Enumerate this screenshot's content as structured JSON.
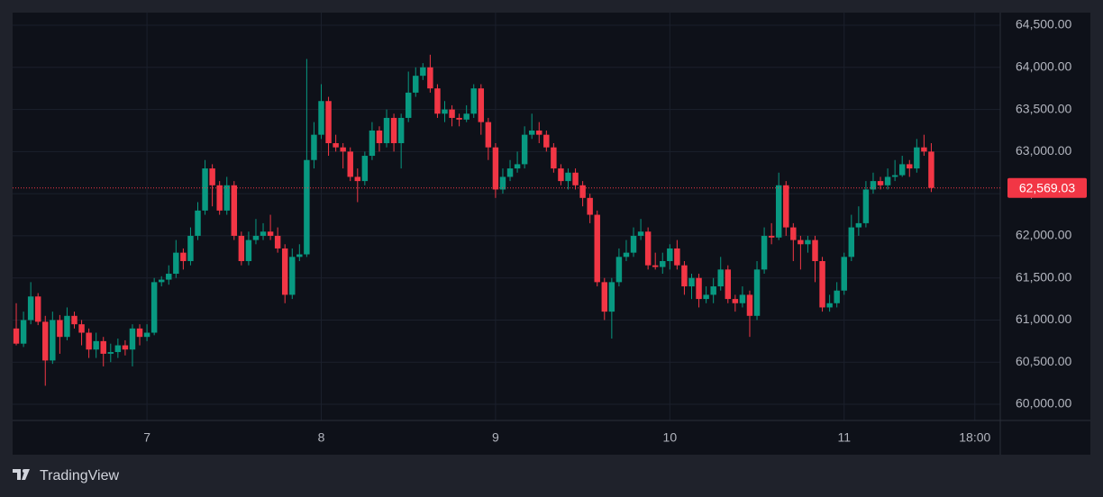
{
  "chart_data": {
    "type": "candlestick",
    "watermark": "TradingView",
    "up_color": "#089981",
    "down_color": "#f23645",
    "grid": true,
    "ylim": [
      59808,
      64650
    ],
    "yticks": [
      {
        "value": 60000,
        "label": "60,000.00"
      },
      {
        "value": 60500,
        "label": "60,500.00"
      },
      {
        "value": 61000,
        "label": "61,000.00"
      },
      {
        "value": 61500,
        "label": "61,500.00"
      },
      {
        "value": 62000,
        "label": "62,000.00"
      },
      {
        "value": 62500,
        "label": "62,500.00"
      },
      {
        "value": 63000,
        "label": "63,000.00"
      },
      {
        "value": 63500,
        "label": "63,500.00"
      },
      {
        "value": 64000,
        "label": "64,000.00"
      },
      {
        "value": 64500,
        "label": "64,500.00"
      }
    ],
    "last_price": {
      "value": 62569.03,
      "label": "62,569.03"
    },
    "categories": [
      null,
      null,
      null,
      null,
      null,
      null,
      null,
      null,
      null,
      null,
      null,
      null,
      null,
      null,
      null,
      null,
      null,
      null,
      "7",
      null,
      null,
      null,
      null,
      null,
      null,
      null,
      null,
      null,
      null,
      null,
      null,
      null,
      null,
      null,
      null,
      null,
      null,
      null,
      null,
      null,
      null,
      null,
      "8",
      null,
      null,
      null,
      null,
      null,
      null,
      null,
      null,
      null,
      null,
      null,
      null,
      null,
      null,
      null,
      null,
      null,
      null,
      null,
      null,
      null,
      null,
      null,
      "9",
      null,
      null,
      null,
      null,
      null,
      null,
      null,
      null,
      null,
      null,
      null,
      null,
      null,
      null,
      null,
      null,
      null,
      null,
      null,
      null,
      null,
      null,
      null,
      "10",
      null,
      null,
      null,
      null,
      null,
      null,
      null,
      null,
      null,
      null,
      null,
      null,
      null,
      null,
      null,
      null,
      null,
      null,
      null,
      null,
      null,
      null,
      null,
      "11",
      null,
      null,
      null,
      null,
      null,
      null,
      null,
      null,
      null,
      null,
      null,
      null,
      null,
      null,
      null,
      null,
      null,
      "18:00",
      null,
      null,
      null
    ],
    "open": [
      60900,
      60720,
      61000,
      61280,
      60980,
      60520,
      61000,
      60800,
      61050,
      60950,
      60850,
      60650,
      60750,
      60600,
      60620,
      60700,
      60650,
      60900,
      60800,
      60850,
      61450,
      61480,
      61550,
      61800,
      61700,
      62000,
      62300,
      62800,
      62600,
      62300,
      62600,
      62000,
      61700,
      61950,
      62000,
      62050,
      62000,
      61850,
      61300,
      61750,
      61780,
      62900,
      63200,
      63600,
      63100,
      63050,
      63000,
      62700,
      62650,
      62950,
      63250,
      63100,
      63400,
      63100,
      63400,
      63700,
      63900,
      64000,
      63750,
      63450,
      63500,
      63400,
      63380,
      63450,
      63750,
      63350,
      63050,
      62550,
      62700,
      62800,
      62850,
      63200,
      63250,
      63200,
      63050,
      62800,
      62650,
      62750,
      62600,
      62450,
      62250,
      61450,
      61100,
      61450,
      61750,
      61800,
      62000,
      62050,
      61650,
      61630,
      61700,
      61850,
      61650,
      61400,
      61500,
      61250,
      61300,
      61400,
      61600,
      61250,
      61200,
      61300,
      61050,
      61600,
      62000,
      61980,
      62600,
      62100,
      61950,
      61900,
      61950,
      61700,
      61150,
      61200,
      61350,
      61750,
      62100,
      62150,
      62550,
      62650,
      62600,
      62700,
      62720,
      62850,
      62800,
      63050,
      63000,
      null,
      null,
      null,
      null,
      null,
      null,
      null,
      null,
      null
    ],
    "high": [
      61200,
      61100,
      61450,
      61320,
      61050,
      61100,
      61060,
      61150,
      61100,
      61000,
      60900,
      60850,
      60800,
      60720,
      60780,
      60760,
      60950,
      60950,
      60950,
      61500,
      61520,
      61650,
      61950,
      61850,
      62100,
      62400,
      62900,
      62850,
      62650,
      62700,
      62650,
      62050,
      62050,
      62200,
      62150,
      62250,
      62100,
      61900,
      61850,
      61900,
      64100,
      63350,
      63800,
      63650,
      63200,
      63100,
      63050,
      62800,
      63000,
      63350,
      63300,
      63500,
      63450,
      63450,
      63950,
      64000,
      64050,
      64150,
      63800,
      63600,
      63550,
      63450,
      63550,
      63800,
      63800,
      63400,
      63100,
      62800,
      62900,
      63000,
      63300,
      63450,
      63350,
      63250,
      63100,
      62850,
      62800,
      62800,
      62650,
      62500,
      62300,
      61500,
      61500,
      61850,
      61950,
      62100,
      62200,
      62100,
      61800,
      61800,
      61900,
      61950,
      61700,
      61550,
      61550,
      61400,
      61500,
      61750,
      61650,
      61300,
      61400,
      61350,
      61700,
      62100,
      62150,
      62750,
      62650,
      62150,
      62000,
      62000,
      62000,
      61750,
      61300,
      61450,
      61800,
      62250,
      62350,
      62650,
      62750,
      62700,
      62800,
      62900,
      62950,
      62900,
      63150,
      63200,
      63100,
      null,
      null,
      null,
      null,
      null,
      null,
      null,
      null,
      null
    ],
    "low": [
      60700,
      60680,
      60950,
      60940,
      60220,
      60480,
      60600,
      60760,
      60900,
      60700,
      60550,
      60550,
      60450,
      60500,
      60550,
      60580,
      60450,
      60700,
      60750,
      60820,
      61400,
      61420,
      61500,
      61600,
      61650,
      61950,
      62250,
      62350,
      62250,
      62250,
      61950,
      61650,
      61650,
      61900,
      61950,
      61950,
      61800,
      61200,
      61250,
      61700,
      61750,
      62800,
      63150,
      62950,
      63000,
      62800,
      62650,
      62400,
      62600,
      62900,
      63000,
      63050,
      63000,
      62800,
      63350,
      63650,
      63850,
      63700,
      63400,
      63350,
      63300,
      63300,
      63350,
      63400,
      63200,
      62900,
      62450,
      62500,
      62650,
      62750,
      62800,
      63150,
      63100,
      63000,
      62750,
      62600,
      62550,
      62550,
      62350,
      62150,
      61400,
      61000,
      60780,
      61400,
      61700,
      61750,
      61950,
      61600,
      61600,
      61550,
      61600,
      61600,
      61300,
      61250,
      61150,
      61200,
      61200,
      61350,
      61200,
      61100,
      61150,
      60800,
      61000,
      61550,
      61900,
      61950,
      62000,
      61700,
      61600,
      61800,
      61450,
      61100,
      61100,
      61150,
      61300,
      61700,
      62000,
      62100,
      62500,
      62550,
      62550,
      62650,
      62700,
      62700,
      62750,
      62950,
      62520,
      null,
      null,
      null,
      null,
      null,
      null,
      null,
      null,
      null
    ],
    "close": [
      60720,
      61000,
      61280,
      60980,
      60520,
      61000,
      60800,
      61050,
      60950,
      60850,
      60650,
      60750,
      60600,
      60620,
      60700,
      60650,
      60900,
      60800,
      60850,
      61450,
      61480,
      61550,
      61800,
      61700,
      62000,
      62300,
      62800,
      62600,
      62300,
      62600,
      62000,
      61700,
      61950,
      62000,
      62050,
      62000,
      61850,
      61300,
      61750,
      61780,
      62900,
      63200,
      63600,
      63100,
      63050,
      63000,
      62700,
      62650,
      62950,
      63250,
      63100,
      63400,
      63100,
      63400,
      63700,
      63900,
      64000,
      63750,
      63450,
      63500,
      63400,
      63380,
      63450,
      63750,
      63350,
      63050,
      62550,
      62700,
      62800,
      62850,
      63200,
      63250,
      63200,
      63050,
      62800,
      62650,
      62750,
      62600,
      62450,
      62250,
      61450,
      61100,
      61450,
      61750,
      61800,
      62000,
      62050,
      61650,
      61630,
      61700,
      61850,
      61650,
      61400,
      61500,
      61250,
      61300,
      61400,
      61600,
      61250,
      61200,
      61300,
      61050,
      61600,
      62000,
      61980,
      62600,
      62100,
      61950,
      61900,
      61950,
      61700,
      61150,
      61200,
      61350,
      61750,
      62100,
      62150,
      62550,
      62650,
      62600,
      62700,
      62720,
      62850,
      62800,
      63050,
      63000,
      62569.03,
      null,
      null,
      null,
      null,
      null,
      null,
      null,
      null,
      null
    ]
  }
}
